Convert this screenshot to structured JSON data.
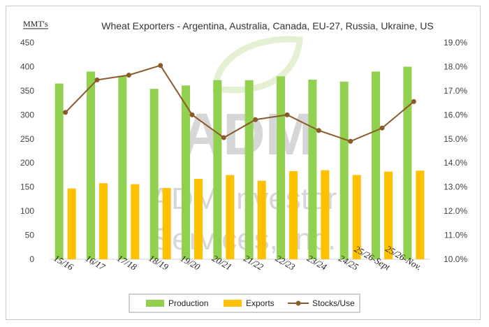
{
  "chart_data": {
    "type": "bar",
    "title": "Wheat Exporters - Argentina, Australia, Canada, EU-27, Russia, Ukraine, US",
    "y_unit_label": "MMT's",
    "categories": [
      "15/16",
      "16/17",
      "17/18",
      "18/19",
      "19/20",
      "20/21",
      "21/22",
      "22/23",
      "23/24",
      "24/25",
      "25/26-Sept",
      "25/26-Nov."
    ],
    "ylim": [
      0,
      450
    ],
    "y_ticks": [
      "0",
      "50",
      "100",
      "150",
      "200",
      "250",
      "300",
      "350",
      "400",
      "450"
    ],
    "y2lim": [
      10.0,
      19.0
    ],
    "y2_ticks": [
      "10.0%",
      "11.0%",
      "12.0%",
      "13.0%",
      "14.0%",
      "15.0%",
      "16.0%",
      "17.0%",
      "18.0%",
      "19.0%"
    ],
    "series": [
      {
        "name": "Production",
        "type": "bar",
        "axis": "left",
        "color": "#92d050",
        "values": [
          365,
          390,
          381,
          354,
          361,
          372,
          372,
          380,
          373,
          369,
          390,
          400
        ]
      },
      {
        "name": "Exports",
        "type": "bar",
        "axis": "left",
        "color": "#ffc000",
        "values": [
          147,
          158,
          156,
          148,
          167,
          175,
          163,
          183,
          185,
          175,
          182,
          184
        ]
      },
      {
        "name": "Stocks/Use",
        "type": "line",
        "axis": "right",
        "color": "#8b5a2b",
        "values": [
          16.1,
          17.45,
          17.65,
          18.05,
          16.0,
          15.05,
          15.8,
          16.0,
          15.35,
          14.9,
          15.45,
          16.55
        ]
      }
    ],
    "legend_position": "bottom",
    "grid": false
  },
  "watermark": {
    "logo_text": "ADM",
    "lines": [
      "ADM Investor",
      "Services, Inc."
    ]
  }
}
